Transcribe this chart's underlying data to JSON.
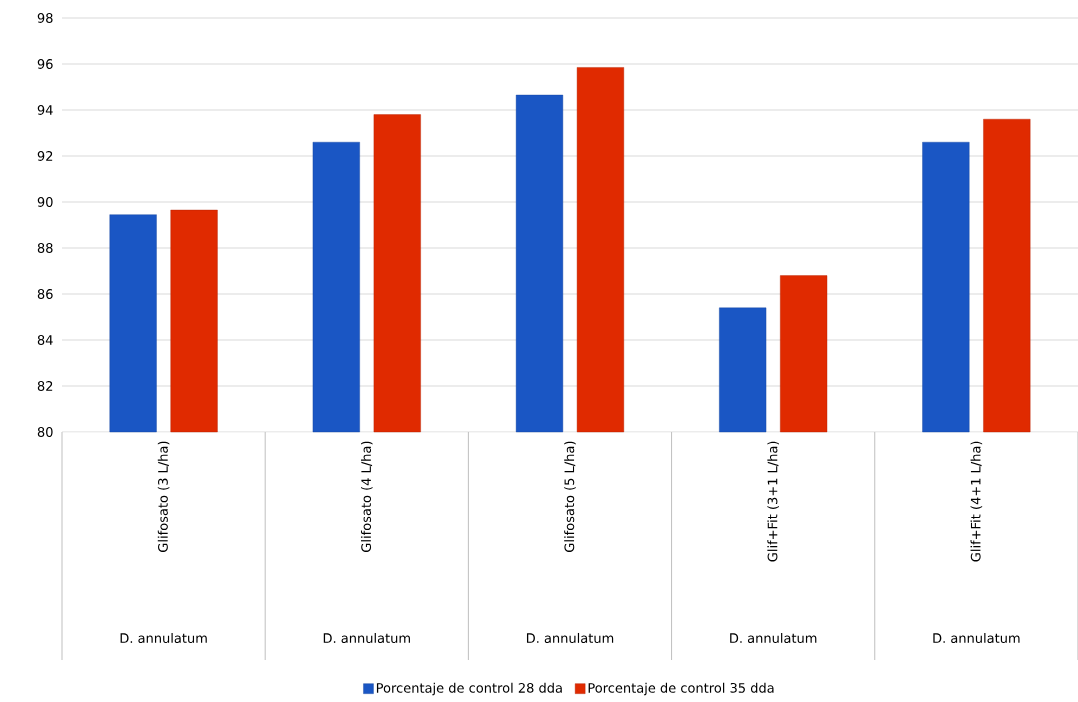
{
  "chart_data": {
    "type": "bar",
    "categories": [
      "Glifosato (3 L/ha)",
      "Glifosato (4 L/ha)",
      "Glifosato (5 L/ha)",
      "Glif+Fit (3+1 L/ha)",
      "Glif+Fit (4+1 L/ha)"
    ],
    "series": [
      {
        "name": "Porcentaje de control  28 dda",
        "color": "#1a56c4",
        "values": [
          89.45,
          92.6,
          94.65,
          85.4,
          92.6
        ]
      },
      {
        "name": "Porcentaje de control  35 dda",
        "color": "#e02a00",
        "values": [
          89.65,
          93.8,
          95.85,
          86.8,
          93.6
        ]
      }
    ],
    "annotations": [
      "D. annulatum",
      "D. annulatum",
      "D. annulatum",
      "D. annulatum",
      "D. annulatum"
    ],
    "ylim": [
      80,
      98
    ],
    "yticks": [
      80,
      82,
      84,
      86,
      88,
      90,
      92,
      94,
      96,
      98
    ],
    "grid": "y",
    "legend": "bottom"
  }
}
